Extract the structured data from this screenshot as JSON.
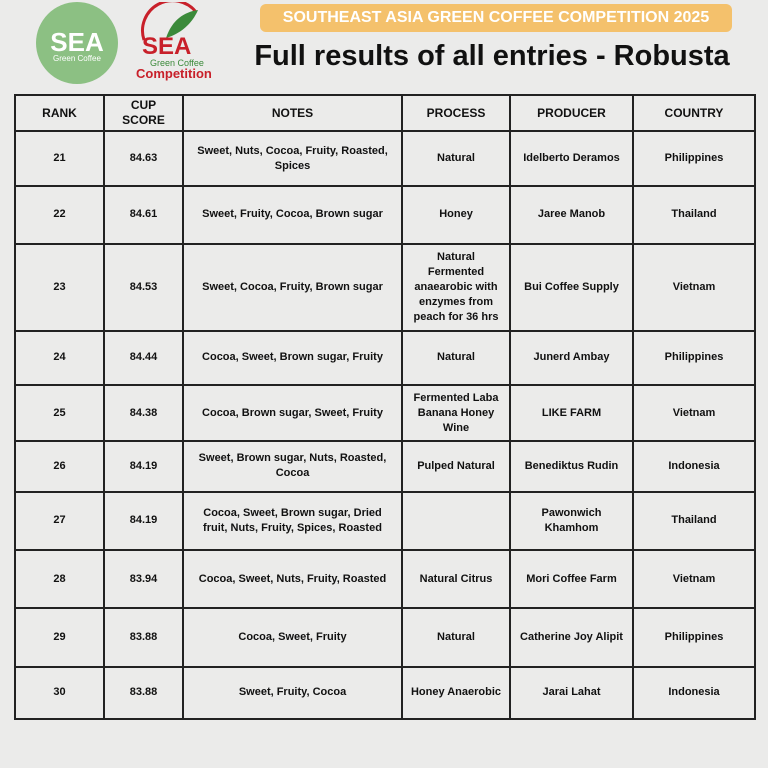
{
  "header": {
    "banner": "SOUTHEAST ASIA GREEN COFFEE COMPETITION 2025",
    "title": "Full results of all entries - Robusta",
    "logo_left": {
      "name": "SEA",
      "sub": "Green Coffee"
    },
    "logo_right": {
      "name": "SEA",
      "sub": "Green Coffee",
      "sub2": "Competition"
    }
  },
  "table": {
    "columns": [
      "RANK",
      "CUP SCORE",
      "NOTES",
      "PROCESS",
      "PRODUCER",
      "COUNTRY"
    ],
    "rows": [
      [
        21,
        84.63,
        "Sweet, Nuts, Cocoa, Fruity, Roasted, Spices",
        "Natural",
        "Idelberto Deramos",
        "Philippines"
      ],
      [
        22,
        84.61,
        "Sweet, Fruity, Cocoa, Brown sugar",
        "Honey",
        "Jaree Manob",
        "Thailand"
      ],
      [
        23,
        84.53,
        "Sweet, Cocoa, Fruity, Brown sugar",
        "Natural Fermented anaearobic with enzymes from peach for 36 hrs",
        "Bui Coffee Supply",
        "Vietnam"
      ],
      [
        24,
        84.44,
        "Cocoa, Sweet, Brown sugar, Fruity",
        "Natural",
        "Junerd Ambay",
        "Philippines"
      ],
      [
        25,
        84.38,
        "Cocoa, Brown sugar, Sweet, Fruity",
        "Fermented Laba Banana Honey Wine",
        "LIKE FARM",
        "Vietnam"
      ],
      [
        26,
        84.19,
        "Sweet, Brown sugar, Nuts, Roasted, Cocoa",
        "Pulped Natural",
        "Benediktus Rudin",
        "Indonesia"
      ],
      [
        27,
        84.19,
        "Cocoa, Sweet, Brown sugar, Dried fruit, Nuts, Fruity, Spices, Roasted",
        null,
        "Pawonwich Khamhom",
        "Thailand"
      ],
      [
        28,
        83.94,
        "Cocoa, Sweet, Nuts, Fruity, Roasted",
        "Natural Citrus",
        "Mori Coffee Farm",
        "Vietnam"
      ],
      [
        29,
        83.88,
        "Cocoa, Sweet, Fruity",
        "Natural",
        "Catherine Joy Alipit",
        "Philippines"
      ],
      [
        30,
        83.88,
        "Sweet, Fruity, Cocoa",
        "Honey Anaerobic",
        "Jarai Lahat",
        "Indonesia"
      ]
    ]
  }
}
